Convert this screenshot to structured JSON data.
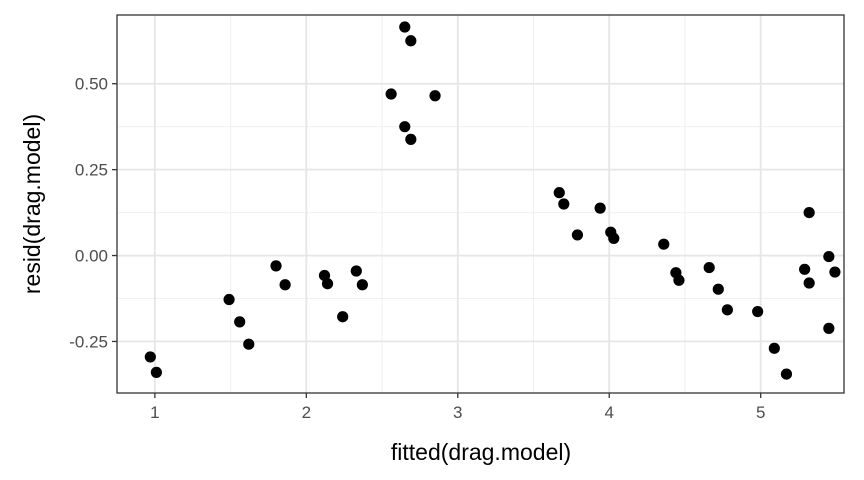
{
  "chart_data": {
    "type": "scatter",
    "title": "",
    "xlabel": "fitted(drag.model)",
    "ylabel": "resid(drag.model)",
    "xlim": [
      0.75,
      5.55
    ],
    "ylim": [
      -0.4,
      0.7
    ],
    "x_ticks": [
      1,
      2,
      3,
      4,
      5
    ],
    "x_tick_labels": [
      "1",
      "2",
      "3",
      "4",
      "5"
    ],
    "y_ticks": [
      -0.25,
      0.0,
      0.25,
      0.5
    ],
    "y_tick_labels": [
      "-0.25",
      "0.00",
      "0.25",
      "0.50"
    ],
    "grid": true,
    "theme": "bw",
    "point_color": "#000000",
    "points": [
      {
        "x": 0.97,
        "y": -0.295
      },
      {
        "x": 1.01,
        "y": -0.34
      },
      {
        "x": 1.49,
        "y": -0.128
      },
      {
        "x": 1.56,
        "y": -0.193
      },
      {
        "x": 1.62,
        "y": -0.258
      },
      {
        "x": 1.8,
        "y": -0.03
      },
      {
        "x": 1.86,
        "y": -0.085
      },
      {
        "x": 2.12,
        "y": -0.058
      },
      {
        "x": 2.14,
        "y": -0.082
      },
      {
        "x": 2.24,
        "y": -0.178
      },
      {
        "x": 2.33,
        "y": -0.045
      },
      {
        "x": 2.37,
        "y": -0.085
      },
      {
        "x": 2.56,
        "y": 0.47
      },
      {
        "x": 2.65,
        "y": 0.665
      },
      {
        "x": 2.65,
        "y": 0.375
      },
      {
        "x": 2.69,
        "y": 0.625
      },
      {
        "x": 2.69,
        "y": 0.338
      },
      {
        "x": 2.85,
        "y": 0.465
      },
      {
        "x": 3.67,
        "y": 0.183
      },
      {
        "x": 3.7,
        "y": 0.15
      },
      {
        "x": 3.79,
        "y": 0.06
      },
      {
        "x": 3.94,
        "y": 0.138
      },
      {
        "x": 4.01,
        "y": 0.068
      },
      {
        "x": 4.03,
        "y": 0.05
      },
      {
        "x": 4.36,
        "y": 0.033
      },
      {
        "x": 4.44,
        "y": -0.05
      },
      {
        "x": 4.46,
        "y": -0.072
      },
      {
        "x": 4.66,
        "y": -0.035
      },
      {
        "x": 4.72,
        "y": -0.098
      },
      {
        "x": 4.78,
        "y": -0.158
      },
      {
        "x": 4.98,
        "y": -0.163
      },
      {
        "x": 5.09,
        "y": -0.27
      },
      {
        "x": 5.17,
        "y": -0.345
      },
      {
        "x": 5.29,
        "y": -0.04
      },
      {
        "x": 5.32,
        "y": 0.125
      },
      {
        "x": 5.32,
        "y": -0.08
      },
      {
        "x": 5.45,
        "y": -0.003
      },
      {
        "x": 5.45,
        "y": -0.212
      },
      {
        "x": 5.49,
        "y": -0.048
      }
    ]
  }
}
